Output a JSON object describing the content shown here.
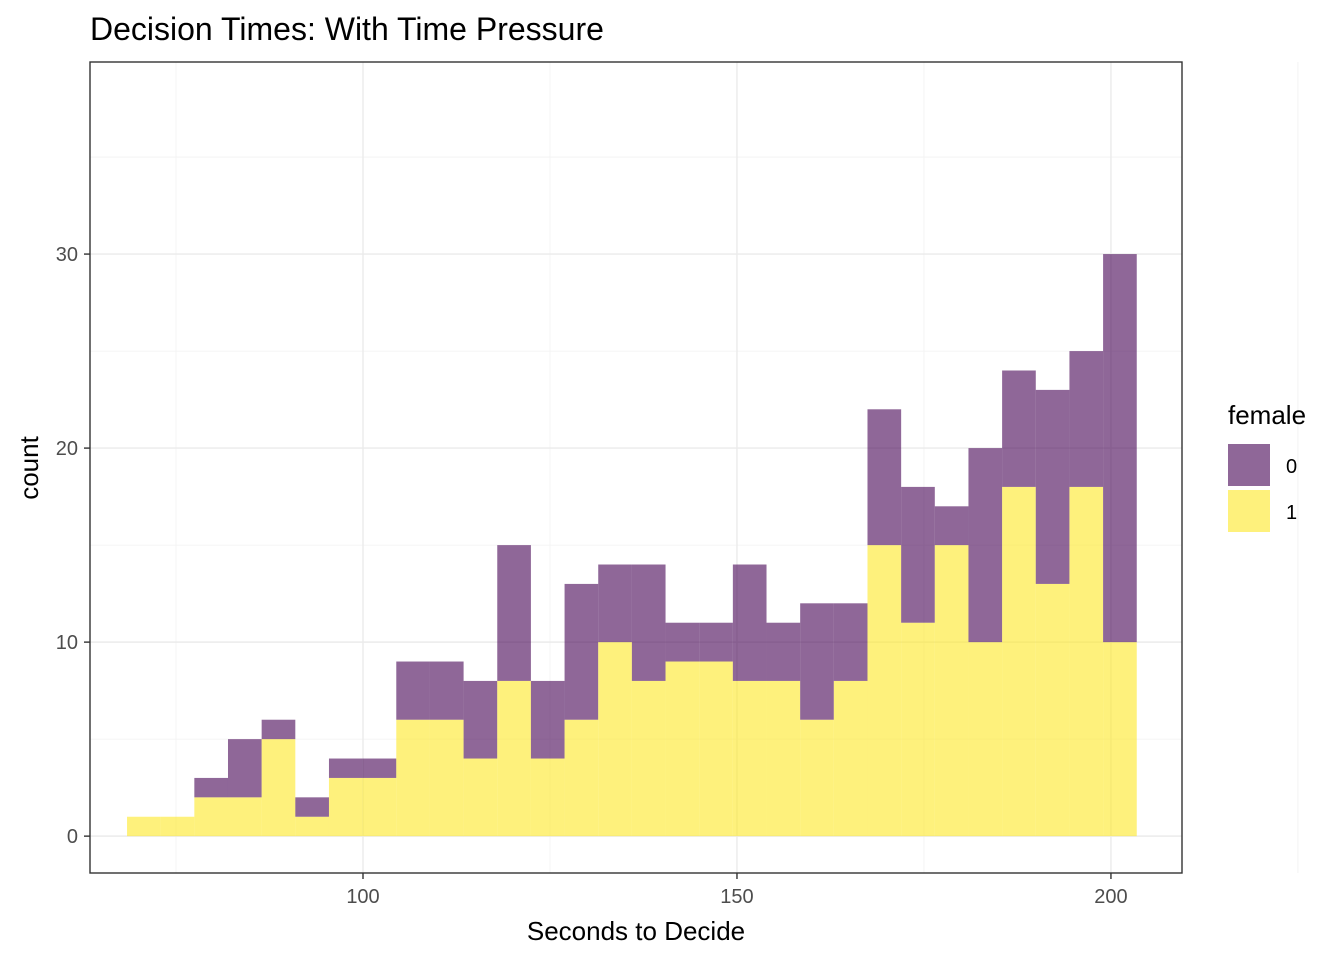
{
  "chart_data": {
    "type": "bar",
    "stacked": true,
    "title": "Decision Times: With Time Pressure",
    "xlabel": "Seconds to Decide",
    "ylabel": "count",
    "x_ticks": [
      100,
      150,
      200
    ],
    "y_ticks": [
      0,
      10,
      20,
      30
    ],
    "xlim": [
      63.5,
      209.5
    ],
    "ylim": [
      -1.9,
      39.9
    ],
    "grid": true,
    "legend": {
      "title": "female",
      "position": "right"
    },
    "bin_width": 4.5,
    "bin_centers": [
      70.7,
      75.2,
      79.7,
      84.2,
      88.7,
      93.2,
      97.7,
      102.2,
      106.7,
      111.2,
      115.7,
      120.2,
      124.7,
      129.2,
      133.7,
      138.2,
      142.7,
      147.2,
      151.7,
      156.2,
      160.7,
      165.2,
      169.7,
      174.2,
      178.7,
      183.2,
      187.7,
      192.2,
      196.7,
      201.2
    ],
    "series": [
      {
        "name": "0",
        "color": "#440154",
        "opacity": 0.6,
        "values": [
          0,
          0,
          1,
          3,
          1,
          1,
          1,
          1,
          3,
          3,
          4,
          7,
          4,
          7,
          4,
          6,
          2,
          2,
          6,
          3,
          6,
          4,
          7,
          7,
          2,
          10,
          6,
          10,
          7,
          20
        ]
      },
      {
        "name": "1",
        "color": "#FDE725",
        "opacity": 0.6,
        "values": [
          1,
          1,
          2,
          2,
          5,
          1,
          3,
          3,
          6,
          6,
          4,
          8,
          4,
          6,
          10,
          8,
          9,
          9,
          8,
          8,
          6,
          8,
          15,
          11,
          15,
          10,
          18,
          13,
          18,
          10
        ]
      }
    ]
  }
}
